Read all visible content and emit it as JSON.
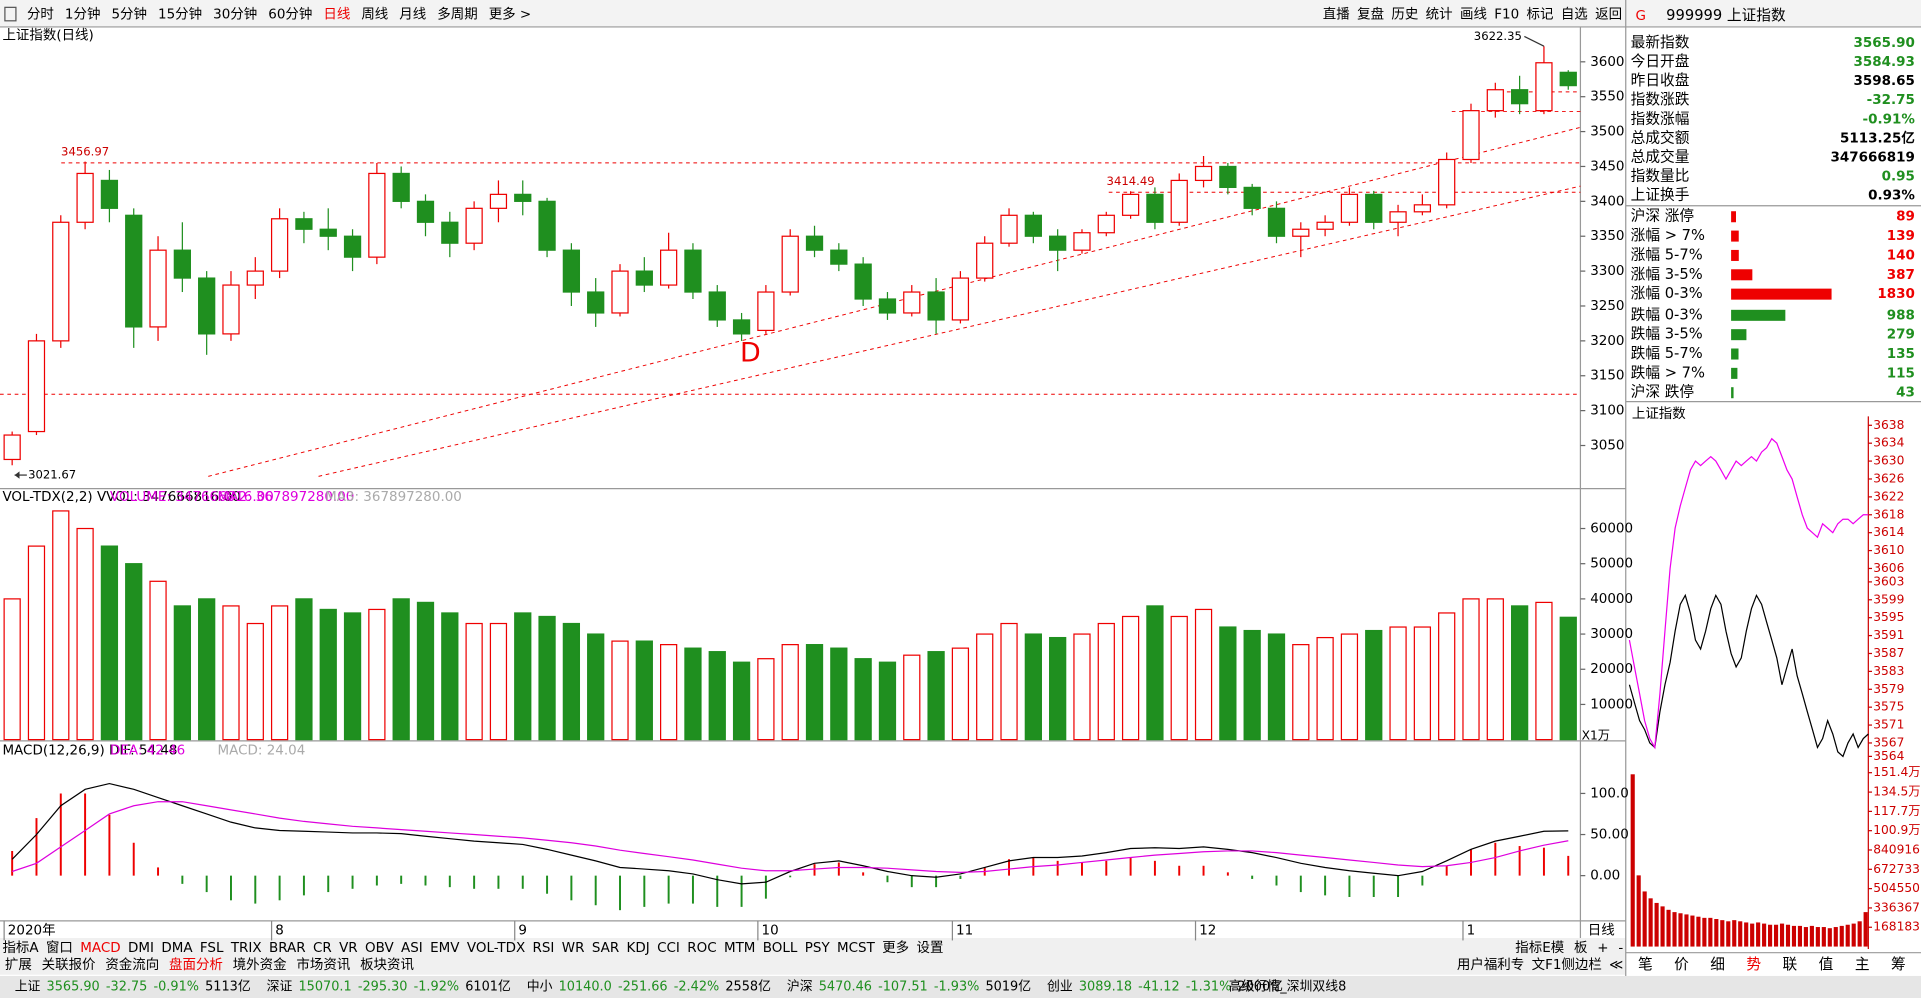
{
  "toolbar": {
    "periods": [
      "分时",
      "1分钟",
      "5分钟",
      "15分钟",
      "30分钟",
      "60分钟",
      "日线",
      "周线",
      "月线",
      "多周期",
      "更多 >"
    ],
    "active_period": "日线",
    "tools": [
      "直播",
      "复盘",
      "历史",
      "统计",
      "画线",
      "F10",
      "标记",
      "自选",
      "返回"
    ]
  },
  "chart_data": [
    {
      "type": "candlestick",
      "title": "上证指数(日线)",
      "axis_end_label": "日线",
      "drawing_label": "D",
      "categories": [
        "2020年",
        null,
        null,
        null,
        null,
        null,
        null,
        null,
        null,
        null,
        null,
        "8",
        null,
        null,
        null,
        null,
        null,
        null,
        null,
        null,
        null,
        "9",
        null,
        null,
        null,
        null,
        null,
        null,
        null,
        null,
        null,
        "10",
        null,
        null,
        null,
        null,
        null,
        null,
        null,
        "11",
        null,
        null,
        null,
        null,
        null,
        null,
        null,
        null,
        null,
        "12",
        null,
        null,
        null,
        null,
        null,
        null,
        null,
        null,
        null,
        null,
        "1",
        null,
        null,
        null,
        null
      ],
      "ohlc": [
        [
          3030,
          3070,
          3021.67,
          3065
        ],
        [
          3070,
          3210,
          3065,
          3200
        ],
        [
          3200,
          3380,
          3190,
          3370
        ],
        [
          3370,
          3456.97,
          3360,
          3440
        ],
        [
          3430,
          3445,
          3370,
          3390
        ],
        [
          3380,
          3390,
          3190,
          3220
        ],
        [
          3220,
          3350,
          3200,
          3330
        ],
        [
          3330,
          3370,
          3270,
          3290
        ],
        [
          3290,
          3300,
          3180,
          3210
        ],
        [
          3210,
          3300,
          3200,
          3280
        ],
        [
          3280,
          3320,
          3260,
          3300
        ],
        [
          3300,
          3390,
          3290,
          3375
        ],
        [
          3375,
          3385,
          3340,
          3360
        ],
        [
          3360,
          3390,
          3330,
          3350
        ],
        [
          3350,
          3360,
          3300,
          3320
        ],
        [
          3320,
          3455,
          3310,
          3440
        ],
        [
          3440,
          3450,
          3390,
          3400
        ],
        [
          3400,
          3410,
          3350,
          3370
        ],
        [
          3370,
          3385,
          3320,
          3340
        ],
        [
          3340,
          3400,
          3330,
          3390
        ],
        [
          3390,
          3430,
          3370,
          3410
        ],
        [
          3410,
          3430,
          3380,
          3400
        ],
        [
          3400,
          3405,
          3320,
          3330
        ],
        [
          3330,
          3340,
          3250,
          3270
        ],
        [
          3270,
          3290,
          3220,
          3240
        ],
        [
          3240,
          3310,
          3235,
          3300
        ],
        [
          3300,
          3320,
          3270,
          3280
        ],
        [
          3280,
          3355,
          3275,
          3330
        ],
        [
          3330,
          3340,
          3260,
          3270
        ],
        [
          3270,
          3280,
          3220,
          3230
        ],
        [
          3230,
          3240,
          3200,
          3210
        ],
        [
          3215,
          3280,
          3210,
          3270
        ],
        [
          3270,
          3360,
          3265,
          3350
        ],
        [
          3350,
          3365,
          3320,
          3330
        ],
        [
          3330,
          3340,
          3300,
          3310
        ],
        [
          3310,
          3320,
          3250,
          3260
        ],
        [
          3260,
          3270,
          3230,
          3240
        ],
        [
          3240,
          3280,
          3235,
          3270
        ],
        [
          3270,
          3290,
          3210,
          3230
        ],
        [
          3230,
          3300,
          3225,
          3290
        ],
        [
          3290,
          3350,
          3285,
          3340
        ],
        [
          3340,
          3390,
          3335,
          3380
        ],
        [
          3380,
          3385,
          3340,
          3350
        ],
        [
          3350,
          3360,
          3300,
          3330
        ],
        [
          3330,
          3360,
          3325,
          3355
        ],
        [
          3355,
          3385,
          3350,
          3380
        ],
        [
          3380,
          3414.49,
          3375,
          3410
        ],
        [
          3410,
          3420,
          3360,
          3370
        ],
        [
          3370,
          3440,
          3365,
          3430
        ],
        [
          3430,
          3465,
          3420,
          3450
        ],
        [
          3450,
          3455,
          3410,
          3420
        ],
        [
          3420,
          3425,
          3380,
          3390
        ],
        [
          3390,
          3400,
          3340,
          3350
        ],
        [
          3350,
          3370,
          3320,
          3360
        ],
        [
          3360,
          3380,
          3350,
          3370
        ],
        [
          3370,
          3420,
          3365,
          3410
        ],
        [
          3410,
          3415,
          3360,
          3370
        ],
        [
          3370,
          3395,
          3350,
          3385
        ],
        [
          3385,
          3410,
          3380,
          3395
        ],
        [
          3395,
          3470,
          3390,
          3460
        ],
        [
          3460,
          3540,
          3455,
          3530
        ],
        [
          3530,
          3570,
          3520,
          3560
        ],
        [
          3560,
          3580,
          3525,
          3540
        ],
        [
          3530,
          3622.35,
          3525,
          3598.65
        ],
        [
          3584.93,
          3588,
          3560,
          3565.9
        ]
      ],
      "annotations": [
        3456.97,
        3414.49,
        3622.35,
        3021.67
      ],
      "ylim": [
        2990,
        3650
      ],
      "yticks": [
        3050,
        3100,
        3150,
        3200,
        3250,
        3300,
        3350,
        3400,
        3450,
        3500,
        3550,
        3600
      ],
      "up_color": "#ee0000",
      "down_color": "#1f8f1f"
    },
    {
      "type": "bar",
      "legend": [
        {
          "text": "VOL-TDX(2,2) VVOL: 347666816.00",
          "color": "#000000"
        },
        {
          "text": "VOLUME: 347666816.00",
          "color": "#dd00dd"
        },
        {
          "text": "MA2: 367897280.00",
          "color": "#dd00dd"
        },
        {
          "text": "MA3: 367897280.00",
          "color": "#aaaaaa"
        }
      ],
      "unit": "X1万",
      "values": [
        40000,
        55000,
        65000,
        60000,
        55000,
        50000,
        45000,
        38000,
        40000,
        38000,
        33000,
        38000,
        40000,
        37000,
        36000,
        37000,
        40000,
        39000,
        36000,
        33000,
        33000,
        36000,
        35000,
        33000,
        30000,
        28000,
        28000,
        27000,
        26000,
        25000,
        22000,
        23000,
        27000,
        27000,
        26000,
        23000,
        22000,
        24000,
        25000,
        26000,
        30000,
        33000,
        30000,
        29000,
        30000,
        33000,
        35000,
        38000,
        35000,
        37000,
        32000,
        31000,
        30000,
        27000,
        29000,
        30000,
        31000,
        32000,
        32000,
        36000,
        40000,
        40000,
        38000,
        39000,
        34766.68
      ],
      "ylim": [
        0,
        71000
      ],
      "yticks": [
        10000,
        20000,
        30000,
        40000,
        50000,
        60000
      ]
    },
    {
      "type": "macd",
      "legend": [
        {
          "text": "MACD(12,26,9) DIF: 54.48",
          "color": "#000000"
        },
        {
          "text": "DEA: 42.46",
          "color": "#dd00dd"
        },
        {
          "text": "MACD: 24.04",
          "color": "#aaaaaa"
        }
      ],
      "series": [
        {
          "color": "#000000",
          "values": [
            20,
            50,
            85,
            105,
            112,
            105,
            95,
            85,
            75,
            65,
            58,
            55,
            54,
            53,
            52,
            52,
            51,
            48,
            45,
            42,
            40,
            38,
            32,
            25,
            18,
            10,
            8,
            6,
            2,
            -5,
            -10,
            -8,
            5,
            15,
            18,
            12,
            5,
            0,
            -2,
            2,
            10,
            18,
            22,
            22,
            24,
            28,
            33,
            34,
            33,
            35,
            32,
            28,
            22,
            15,
            10,
            6,
            3,
            0,
            5,
            18,
            32,
            42,
            48,
            54,
            54.48
          ]
        },
        {
          "color": "#dd00dd",
          "values": [
            5,
            15,
            35,
            55,
            75,
            85,
            90,
            90,
            85,
            80,
            75,
            70,
            66,
            63,
            60,
            58,
            56,
            54,
            52,
            50,
            48,
            46,
            43,
            40,
            36,
            31,
            27,
            23,
            19,
            14,
            9,
            6,
            6,
            8,
            10,
            10,
            9,
            7,
            5,
            4,
            5,
            8,
            11,
            13,
            16,
            19,
            22,
            25,
            27,
            29,
            30,
            30,
            28,
            25,
            22,
            19,
            16,
            13,
            11,
            12,
            16,
            22,
            30,
            37,
            42.46
          ]
        }
      ],
      "histogram": [
        30,
        70,
        100,
        100,
        74,
        40,
        10,
        -10,
        -20,
        -30,
        -34,
        -30,
        -24,
        -20,
        -16,
        -12,
        -10,
        -12,
        -14,
        -16,
        -16,
        -16,
        -22,
        -30,
        -36,
        -42,
        -38,
        -34,
        -34,
        -38,
        -38,
        -28,
        -2,
        14,
        16,
        4,
        -8,
        -14,
        -14,
        -4,
        10,
        20,
        22,
        18,
        16,
        18,
        22,
        18,
        12,
        12,
        4,
        -4,
        -12,
        -20,
        -24,
        -26,
        -26,
        -26,
        -12,
        12,
        32,
        40,
        36,
        34,
        24.04
      ],
      "ylim": [
        -55,
        161
      ],
      "yticks": [
        {
          "value": 100,
          "label": "100.0"
        },
        {
          "value": 50,
          "label": "50.00"
        },
        {
          "value": 0,
          "label": "0.00"
        }
      ]
    },
    {
      "type": "line",
      "title": "上证指数",
      "series": [
        {
          "color": "#000000",
          "values": [
            3580,
            3576,
            3572,
            3570,
            3567,
            3566,
            3574,
            3580,
            3585,
            3592,
            3598,
            3600,
            3596,
            3590,
            3588,
            3592,
            3597,
            3600,
            3598,
            3592,
            3587,
            3584,
            3586,
            3592,
            3597,
            3600,
            3598,
            3594,
            3590,
            3586,
            3580,
            3584,
            3588,
            3582,
            3578,
            3574,
            3570,
            3566,
            3568,
            3572,
            3569,
            3565,
            3564,
            3567,
            3569,
            3566,
            3568,
            3569
          ]
        },
        {
          "color": "#ee00ee",
          "values": [
            3590,
            3584,
            3578,
            3572,
            3568,
            3566,
            3578,
            3592,
            3606,
            3615,
            3620,
            3624,
            3628,
            3630,
            3629,
            3630,
            3631,
            3630,
            3628,
            3626,
            3628,
            3630,
            3629,
            3630,
            3631,
            3630,
            3632,
            3633,
            3635,
            3634,
            3631,
            3628,
            3626,
            3622,
            3618,
            3615,
            3614,
            3613,
            3616,
            3615,
            3614,
            3616,
            3617,
            3617,
            3616,
            3617,
            3618,
            3618
          ]
        }
      ],
      "ylim": [
        3562,
        3640
      ],
      "yticks": [
        3638,
        3634,
        3630,
        3626,
        3622,
        3618,
        3614,
        3610,
        3606,
        3603,
        3599,
        3595,
        3591,
        3587,
        3583,
        3579,
        3575,
        3571,
        3567,
        3564
      ]
    },
    {
      "type": "bar",
      "color": "#cc0000",
      "values": [
        1500000,
        620000,
        480000,
        420000,
        380000,
        350000,
        320000,
        300000,
        290000,
        280000,
        270000,
        260000,
        250000,
        250000,
        240000,
        230000,
        220000,
        230000,
        220000,
        210000,
        200000,
        210000,
        200000,
        190000,
        190000,
        200000,
        190000,
        180000,
        180000,
        170000,
        180000,
        170000,
        170000,
        160000,
        170000,
        180000,
        190000,
        200000,
        220000,
        300000
      ],
      "ylim": [
        0,
        1578000
      ],
      "yticks": [
        {
          "value": 1514000,
          "label": "151.4万"
        },
        {
          "value": 1345000,
          "label": "134.5万"
        },
        {
          "value": 1177000,
          "label": "117.7万"
        },
        {
          "value": 1009000,
          "label": "100.9万"
        },
        840916,
        672733,
        504550,
        336367,
        168183
      ]
    }
  ],
  "quote": {
    "icon": "G",
    "title": "999999 上证指数",
    "rows": [
      {
        "label": "最新指数",
        "value": "3565.90",
        "color": "#1f8f1f"
      },
      {
        "label": "今日开盘",
        "value": "3584.93",
        "color": "#1f8f1f"
      },
      {
        "label": "昨日收盘",
        "value": "3598.65",
        "color": "#000000"
      },
      {
        "label": "指数涨跌",
        "value": "-32.75",
        "color": "#1f8f1f"
      },
      {
        "label": "指数涨幅",
        "value": "-0.91%",
        "color": "#1f8f1f"
      },
      {
        "label": "总成交额",
        "value": "5113.25亿",
        "color": "#000000"
      },
      {
        "label": "总成交量",
        "value": "347666819",
        "color": "#000000"
      },
      {
        "label": "指数量比",
        "value": "0.95",
        "color": "#1f8f1f"
      },
      {
        "label": "上证换手",
        "value": "0.93%",
        "color": "#000000"
      }
    ]
  },
  "breadth": {
    "xlim": [
      0,
      1830
    ],
    "rows": [
      {
        "label": "沪深 涨停",
        "value": 89,
        "color": "#ee0000"
      },
      {
        "label": "涨幅 > 7%",
        "value": 139,
        "color": "#ee0000"
      },
      {
        "label": "涨幅 5-7%",
        "value": 140,
        "color": "#ee0000"
      },
      {
        "label": "涨幅 3-5%",
        "value": 387,
        "color": "#ee0000"
      },
      {
        "label": "涨幅 0-3%",
        "value": 1830,
        "color": "#ee0000"
      },
      {
        "label": "跌幅 0-3%",
        "value": 988,
        "color": "#1f8f1f"
      },
      {
        "label": "跌幅 3-5%",
        "value": 279,
        "color": "#1f8f1f"
      },
      {
        "label": "跌幅 5-7%",
        "value": 135,
        "color": "#1f8f1f"
      },
      {
        "label": "跌幅 > 7%",
        "value": 115,
        "color": "#1f8f1f"
      },
      {
        "label": "沪深 跌停",
        "value": 43,
        "color": "#1f8f1f"
      }
    ]
  },
  "side_tabs": [
    "笔",
    "价",
    "细",
    "势",
    "联",
    "值",
    "主",
    "筹"
  ],
  "side_active": "势",
  "indicator_tabs": {
    "items": [
      "指标A",
      "窗口",
      "MACD",
      "DMI",
      "DMA",
      "FSL",
      "TRIX",
      "BRAR",
      "CR",
      "VR",
      "OBV",
      "ASI",
      "EMV",
      "VOL-TDX",
      "RSI",
      "WR",
      "SAR",
      "KDJ",
      "CCI",
      "ROC",
      "MTM",
      "BOLL",
      "PSY",
      "MCST",
      "更多",
      "设置"
    ],
    "active": "MACD",
    "right": [
      "指标E模",
      "板",
      "+",
      "-"
    ]
  },
  "info_tabs": {
    "items": [
      "扩展",
      "关联报价",
      "资金流向",
      "盘面分析",
      "境外资金",
      "市场资讯",
      "板块资讯"
    ],
    "active": "盘面分析",
    "right": [
      "用户福利专",
      "文F1侧边栏",
      "≪"
    ]
  },
  "status_bar": {
    "markets": [
      {
        "label": "上证",
        "price": "3565.90",
        "change": "-32.75",
        "pct": "-0.91%",
        "amount": "5113亿"
      },
      {
        "label": "深证",
        "price": "15070.1",
        "change": "-295.30",
        "pct": "-1.92%",
        "amount": "6101亿"
      },
      {
        "label": "中小",
        "price": "10140.0",
        "change": "-251.66",
        "pct": "-2.42%",
        "amount": "2558亿"
      },
      {
        "label": "沪深",
        "price": "5470.46",
        "change": "-107.51",
        "pct": "-1.93%",
        "amount": "5019亿"
      },
      {
        "label": "创业",
        "price": "3089.18",
        "change": "-41.12",
        "pct": "-1.31%",
        "amount": "2000亿"
      }
    ],
    "server": "高级行情_深圳双线8"
  }
}
